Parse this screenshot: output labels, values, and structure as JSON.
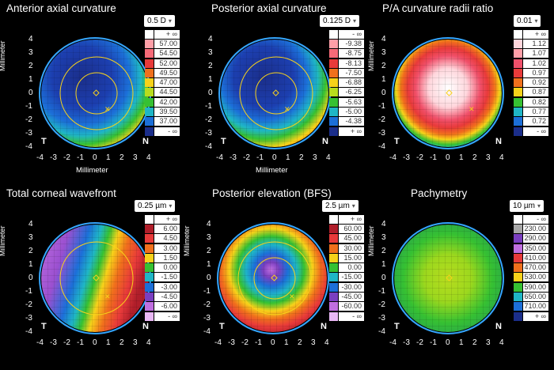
{
  "panels": [
    {
      "id": "anterior",
      "title": "Anterior axial curvature",
      "step": "0.5 D",
      "scale": [
        {
          "label": "+ ∞",
          "color": "#ffffff"
        },
        {
          "label": "57.00",
          "color": "#ff9fa8"
        },
        {
          "label": "54.50",
          "color": "#f76a78"
        },
        {
          "label": "52.00",
          "color": "#e83a3a"
        },
        {
          "label": "49.50",
          "color": "#f0701c"
        },
        {
          "label": "47.00",
          "color": "#f7d21a"
        },
        {
          "label": "44.50",
          "color": "#b7dc1e"
        },
        {
          "label": "42.00",
          "color": "#36c132"
        },
        {
          "label": "39.50",
          "color": "#1fb6c6"
        },
        {
          "label": "37.00",
          "color": "#1c6fd8"
        },
        {
          "label": "- ∞",
          "color": "#1b2e8a"
        }
      ],
      "corner_left": "T",
      "corner_right": "N",
      "y_axis_label": "Millimeter",
      "x_axis_label": "Millimeter"
    },
    {
      "id": "posterior",
      "title": "Posterior axial curvature",
      "step": "0.125 D",
      "scale": [
        {
          "label": "- ∞",
          "color": "#ffffff"
        },
        {
          "label": "-9.38",
          "color": "#ff9fa8"
        },
        {
          "label": "-8.75",
          "color": "#f76a78"
        },
        {
          "label": "-8.13",
          "color": "#e83a3a"
        },
        {
          "label": "-7.50",
          "color": "#f0701c"
        },
        {
          "label": "-6.88",
          "color": "#f7d21a"
        },
        {
          "label": "-6.25",
          "color": "#b7dc1e"
        },
        {
          "label": "-5.63",
          "color": "#36c132"
        },
        {
          "label": "-5.00",
          "color": "#1fb6c6"
        },
        {
          "label": "-4.38",
          "color": "#1c6fd8"
        },
        {
          "label": "+ ∞",
          "color": "#1b2e8a"
        }
      ],
      "corner_left": "T",
      "corner_right": "N",
      "y_axis_label": "",
      "x_axis_label": "Millimeter"
    },
    {
      "id": "ratio",
      "title": "P/A curvature radii ratio",
      "step": "0.01",
      "scale": [
        {
          "label": "+ ∞",
          "color": "#ffffff"
        },
        {
          "label": "1.12",
          "color": "#ffd6dc"
        },
        {
          "label": "1.07",
          "color": "#ff9fa8"
        },
        {
          "label": "1.02",
          "color": "#f0506a"
        },
        {
          "label": "0.97",
          "color": "#e83a3a"
        },
        {
          "label": "0.92",
          "color": "#f0701c"
        },
        {
          "label": "0.87",
          "color": "#f7d21a"
        },
        {
          "label": "0.82",
          "color": "#36c132"
        },
        {
          "label": "0.77",
          "color": "#1fb6c6"
        },
        {
          "label": "0.72",
          "color": "#1c6fd8"
        },
        {
          "label": "- ∞",
          "color": "#1b2e8a"
        }
      ],
      "corner_left": "T",
      "corner_right": "N",
      "y_axis_label": "Millimeter",
      "x_axis_label": ""
    },
    {
      "id": "wavefront",
      "title": "Total corneal wavefront",
      "step": "0.25 µm",
      "scale": [
        {
          "label": "+ ∞",
          "color": "#ffffff"
        },
        {
          "label": "6.00",
          "color": "#b01e2a"
        },
        {
          "label": "4.50",
          "color": "#e83a3a"
        },
        {
          "label": "3.00",
          "color": "#f0701c"
        },
        {
          "label": "1.50",
          "color": "#f7d21a"
        },
        {
          "label": "0.00",
          "color": "#36c132"
        },
        {
          "label": "-1.50",
          "color": "#1fb6c6"
        },
        {
          "label": "-3.00",
          "color": "#1c6fd8"
        },
        {
          "label": "-4.50",
          "color": "#7a3fc0"
        },
        {
          "label": "-6.00",
          "color": "#c06fe0"
        },
        {
          "label": "- ∞",
          "color": "#e9b8f5"
        }
      ],
      "corner_left": "T",
      "corner_right": "N",
      "y_axis_label": "Millimeter",
      "x_axis_label": ""
    },
    {
      "id": "elevation",
      "title": "Posterior elevation (BFS)",
      "step": "2.5 µm",
      "scale": [
        {
          "label": "+ ∞",
          "color": "#ffffff"
        },
        {
          "label": "60.00",
          "color": "#b01e2a"
        },
        {
          "label": "45.00",
          "color": "#e83a3a"
        },
        {
          "label": "30.00",
          "color": "#f0701c"
        },
        {
          "label": "15.00",
          "color": "#f7d21a"
        },
        {
          "label": "0.00",
          "color": "#36c132"
        },
        {
          "label": "-15.00",
          "color": "#1fb6c6"
        },
        {
          "label": "-30.00",
          "color": "#1c6fd8"
        },
        {
          "label": "-45.00",
          "color": "#7a3fc0"
        },
        {
          "label": "-60.00",
          "color": "#c06fe0"
        },
        {
          "label": "- ∞",
          "color": "#e9b8f5"
        }
      ],
      "corner_left": "T",
      "corner_right": "N",
      "y_axis_label": "Millimeter",
      "x_axis_label": ""
    },
    {
      "id": "pachymetry",
      "title": "Pachymetry",
      "step": "10 µm",
      "scale": [
        {
          "label": "- ∞",
          "color": "#ffffff"
        },
        {
          "label": "230.00",
          "color": "#a8a8a8"
        },
        {
          "label": "290.00",
          "color": "#7a3fc0"
        },
        {
          "label": "350.00",
          "color": "#c06fe0"
        },
        {
          "label": "410.00",
          "color": "#e83a3a"
        },
        {
          "label": "470.00",
          "color": "#f0701c"
        },
        {
          "label": "530.00",
          "color": "#f7d21a"
        },
        {
          "label": "590.00",
          "color": "#36c132"
        },
        {
          "label": "650.00",
          "color": "#1fb6c6"
        },
        {
          "label": "710.00",
          "color": "#1c6fd8"
        },
        {
          "label": "+ ∞",
          "color": "#1b2e8a"
        }
      ],
      "corner_left": "T",
      "corner_right": "N",
      "y_axis_label": "Millimeter",
      "x_axis_label": ""
    }
  ],
  "ticks": [
    "-4",
    "-3",
    "-2",
    "-1",
    "0",
    "1",
    "2",
    "3",
    "4"
  ],
  "yticks": [
    "4",
    "3",
    "2",
    "1",
    "0",
    "-1",
    "-2",
    "-3",
    "-4"
  ]
}
